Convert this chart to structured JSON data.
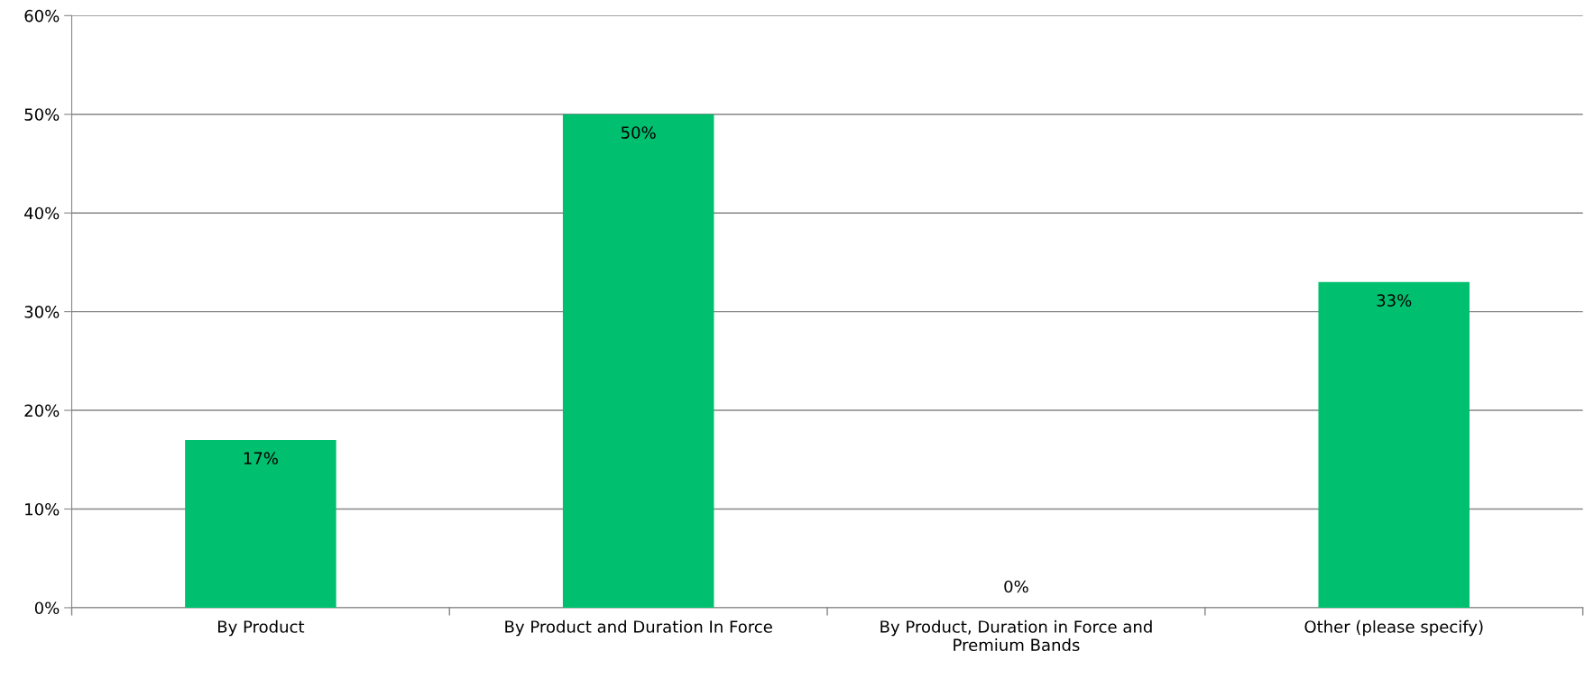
{
  "chart_data": {
    "type": "bar",
    "categories": [
      "By Product",
      "By Product and Duration In Force",
      "By Product, Duration in Force and Premium Bands",
      "Other (please specify)"
    ],
    "values": [
      17,
      50,
      0,
      33
    ],
    "value_labels": [
      "17%",
      "50%",
      "0%",
      "33%"
    ],
    "color": "#00bf6f",
    "ylim": [
      0,
      60
    ],
    "yticks": [
      {
        "value": 0,
        "label": "0%"
      },
      {
        "value": 10,
        "label": "10%"
      },
      {
        "value": 20,
        "label": "20%"
      },
      {
        "value": 30,
        "label": "30%"
      },
      {
        "value": 40,
        "label": "40%"
      },
      {
        "value": 50,
        "label": "50%"
      },
      {
        "value": 60,
        "label": "60%"
      }
    ],
    "grid": "y",
    "legend": false
  }
}
